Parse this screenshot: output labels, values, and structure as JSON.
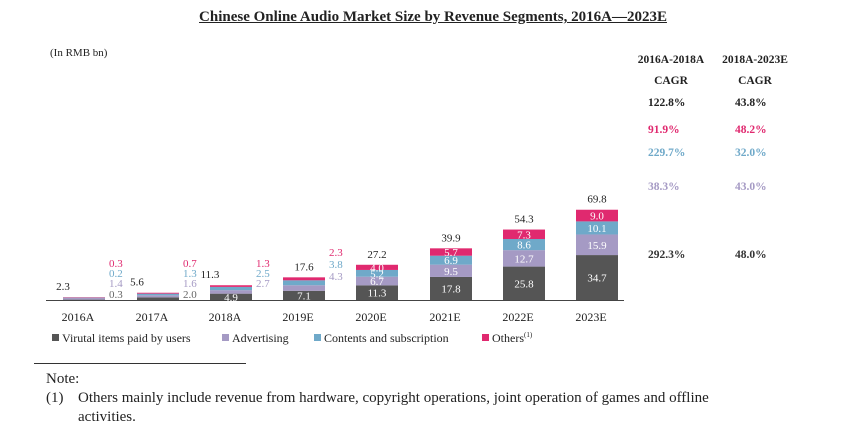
{
  "title": "Chinese Online Audio Market Size by Revenue Segments, 2016A—2023E",
  "unit_label": "(In RMB bn)",
  "cagr_headers": [
    {
      "line1": "2016A-2018A",
      "line2": "CAGR"
    },
    {
      "line1": "2018A-2023E",
      "line2": "CAGR"
    }
  ],
  "colors": {
    "virtual": "#555555",
    "advertising": "#a59ac4",
    "contents": "#6fa9c9",
    "others": "#e0296f"
  },
  "chart_data": {
    "type": "bar",
    "stacked": true,
    "title": "Chinese Online Audio Market Size by Revenue Segments, 2016A—2023E",
    "ylabel": "(In RMB bn)",
    "categories": [
      "2016A",
      "2017A",
      "2018A",
      "2019E",
      "2020E",
      "2021E",
      "2022E",
      "2023E"
    ],
    "totals": [
      "2.3",
      "5.6",
      "11.3",
      "17.6",
      "27.2",
      "39.9",
      "54.3",
      "69.8"
    ],
    "series": [
      {
        "key": "virtual",
        "name": "Virtual items paid by users",
        "values": [
          0.3,
          2.0,
          4.9,
          7.1,
          11.3,
          17.8,
          25.8,
          34.7
        ],
        "labels": [
          "0.3",
          "2.0",
          "4.9",
          "7.1",
          "11.3",
          "17.8",
          "25.8",
          "34.7"
        ]
      },
      {
        "key": "advertising",
        "name": "Advertising",
        "values": [
          1.4,
          1.6,
          2.7,
          4.3,
          6.7,
          9.5,
          12.7,
          15.9
        ],
        "labels": [
          "1.4",
          "1.6",
          "2.7",
          "4.3",
          "6.7",
          "9.5",
          "12.7",
          "15.9"
        ]
      },
      {
        "key": "contents",
        "name": "Contents and subscription",
        "values": [
          0.2,
          1.3,
          2.5,
          3.8,
          5.2,
          6.9,
          8.6,
          10.1
        ],
        "labels": [
          "0.2",
          "1.3",
          "2.5",
          "3.8",
          "5.2",
          "6.9",
          "8.6",
          "10.1"
        ]
      },
      {
        "key": "others",
        "name": "Others",
        "values": [
          0.3,
          0.7,
          1.3,
          2.3,
          4.0,
          5.7,
          7.3,
          9.0
        ],
        "labels": [
          "0.3",
          "0.7",
          "1.3",
          "2.3",
          "4.0",
          "5.7",
          "7.3",
          "9.0"
        ]
      }
    ],
    "cagr": [
      {
        "key": "others",
        "a": "122.8%",
        "b": "43.8%"
      },
      {
        "key": "others",
        "a": "91.9%",
        "b": "48.2%"
      },
      {
        "key": "contents",
        "a": "229.7%",
        "b": "32.0%"
      },
      {
        "key": "advertising",
        "a": "38.3%",
        "b": "43.0%"
      },
      {
        "key": "virtual",
        "a": "292.3%",
        "b": "48.0%"
      }
    ],
    "legend": [
      {
        "key": "virtual",
        "label": "Virutal items paid by users",
        "sup": ""
      },
      {
        "key": "advertising",
        "label": "Advertising",
        "sup": ""
      },
      {
        "key": "contents",
        "label": "Contents and subscription",
        "sup": ""
      },
      {
        "key": "others",
        "label": "Others",
        "sup": "(1)"
      }
    ]
  },
  "note": {
    "title": "Note:",
    "items": [
      {
        "num": "(1)",
        "text": "Others mainly include revenue from hardware, copyright operations, joint operation of games and offline",
        "cont": "activities."
      }
    ]
  }
}
